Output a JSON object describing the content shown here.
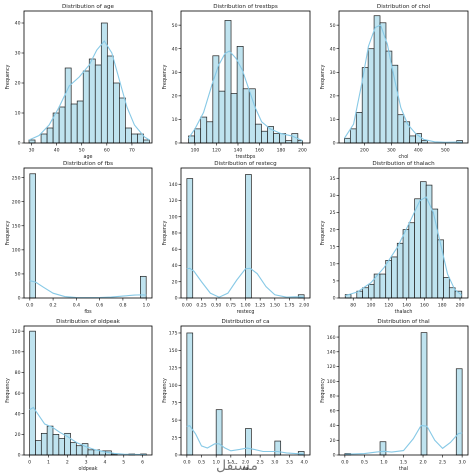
{
  "chart_data": [
    {
      "type": "bar",
      "title": "Distribution of age",
      "xlabel": "age",
      "ylabel": "Frequency",
      "xlim": [
        27,
        78
      ],
      "ylim": [
        0,
        44
      ],
      "xticks": [
        30,
        40,
        50,
        60,
        70
      ],
      "yticks": [
        0,
        10,
        20,
        30,
        40
      ],
      "bins": [
        {
          "x0": 29.0,
          "x1": 31.4,
          "y": 1
        },
        {
          "x0": 31.4,
          "x1": 33.8,
          "y": 0
        },
        {
          "x0": 33.8,
          "x1": 36.2,
          "y": 3
        },
        {
          "x0": 36.2,
          "x1": 38.6,
          "y": 5
        },
        {
          "x0": 38.6,
          "x1": 41.0,
          "y": 10
        },
        {
          "x0": 41.0,
          "x1": 43.4,
          "y": 12
        },
        {
          "x0": 43.4,
          "x1": 45.8,
          "y": 25
        },
        {
          "x0": 45.8,
          "x1": 48.2,
          "y": 13
        },
        {
          "x0": 48.2,
          "x1": 50.6,
          "y": 14
        },
        {
          "x0": 50.6,
          "x1": 53.0,
          "y": 24
        },
        {
          "x0": 53.0,
          "x1": 55.4,
          "y": 28
        },
        {
          "x0": 55.4,
          "x1": 57.8,
          "y": 26
        },
        {
          "x0": 57.8,
          "x1": 60.2,
          "y": 40
        },
        {
          "x0": 60.2,
          "x1": 62.6,
          "y": 29
        },
        {
          "x0": 62.6,
          "x1": 65.0,
          "y": 20
        },
        {
          "x0": 65.0,
          "x1": 67.4,
          "y": 15
        },
        {
          "x0": 67.4,
          "x1": 69.8,
          "y": 5
        },
        {
          "x0": 69.8,
          "x1": 72.2,
          "y": 3
        },
        {
          "x0": 72.2,
          "x1": 74.6,
          "y": 3
        },
        {
          "x0": 74.6,
          "x1": 77.0,
          "y": 1
        }
      ],
      "kde": [
        [
          29,
          1
        ],
        [
          33,
          2.5
        ],
        [
          37,
          6
        ],
        [
          41,
          12
        ],
        [
          45,
          19
        ],
        [
          49,
          22
        ],
        [
          53,
          26
        ],
        [
          56,
          31
        ],
        [
          59,
          34
        ],
        [
          62,
          30
        ],
        [
          65,
          21
        ],
        [
          68,
          12
        ],
        [
          71,
          6
        ],
        [
          75,
          2
        ],
        [
          77,
          1
        ]
      ]
    },
    {
      "type": "bar",
      "title": "Distribution of trestbps",
      "xlabel": "trestbps",
      "ylabel": "Frequency",
      "xlim": [
        87,
        207
      ],
      "ylim": [
        0,
        56
      ],
      "xticks": [
        100,
        120,
        140,
        160,
        180,
        200
      ],
      "yticks": [
        0,
        10,
        20,
        30,
        40,
        50
      ],
      "bins": [
        {
          "x0": 94,
          "x1": 99.65,
          "y": 3
        },
        {
          "x0": 99.65,
          "x1": 105.3,
          "y": 6
        },
        {
          "x0": 105.3,
          "x1": 110.95,
          "y": 11
        },
        {
          "x0": 110.95,
          "x1": 116.6,
          "y": 9
        },
        {
          "x0": 116.6,
          "x1": 122.25,
          "y": 37
        },
        {
          "x0": 122.25,
          "x1": 127.9,
          "y": 22
        },
        {
          "x0": 127.9,
          "x1": 133.55,
          "y": 52
        },
        {
          "x0": 133.55,
          "x1": 139.2,
          "y": 21
        },
        {
          "x0": 139.2,
          "x1": 144.85,
          "y": 41
        },
        {
          "x0": 144.85,
          "x1": 150.5,
          "y": 23
        },
        {
          "x0": 150.5,
          "x1": 156.15,
          "y": 23
        },
        {
          "x0": 156.15,
          "x1": 161.8,
          "y": 8
        },
        {
          "x0": 161.8,
          "x1": 167.45,
          "y": 5
        },
        {
          "x0": 167.45,
          "x1": 173.1,
          "y": 7
        },
        {
          "x0": 173.1,
          "x1": 178.75,
          "y": 4
        },
        {
          "x0": 178.75,
          "x1": 184.4,
          "y": 4
        },
        {
          "x0": 184.4,
          "x1": 190.05,
          "y": 1
        },
        {
          "x0": 190.05,
          "x1": 195.7,
          "y": 4
        },
        {
          "x0": 195.7,
          "x1": 200,
          "y": 1
        }
      ],
      "kde": [
        [
          94,
          2
        ],
        [
          100,
          6
        ],
        [
          108,
          13
        ],
        [
          116,
          25
        ],
        [
          122,
          33
        ],
        [
          128,
          38
        ],
        [
          132,
          39
        ],
        [
          138,
          36
        ],
        [
          144,
          31
        ],
        [
          150,
          23
        ],
        [
          156,
          15
        ],
        [
          162,
          9
        ],
        [
          170,
          6
        ],
        [
          180,
          4
        ],
        [
          190,
          3
        ],
        [
          200,
          1
        ]
      ]
    },
    {
      "type": "bar",
      "title": "Distribution of chol",
      "xlabel": "chol",
      "ylabel": "Frequency",
      "xlim": [
        106,
        584
      ],
      "ylim": [
        0,
        56
      ],
      "xticks": [
        200,
        300,
        400,
        500
      ],
      "yticks": [
        0,
        10,
        20,
        30,
        40,
        50
      ],
      "bins": [
        {
          "x0": 126,
          "x1": 148,
          "y": 2
        },
        {
          "x0": 148,
          "x1": 170,
          "y": 6
        },
        {
          "x0": 170,
          "x1": 192,
          "y": 13
        },
        {
          "x0": 192,
          "x1": 214,
          "y": 32
        },
        {
          "x0": 214,
          "x1": 236,
          "y": 40
        },
        {
          "x0": 236,
          "x1": 258,
          "y": 54
        },
        {
          "x0": 258,
          "x1": 280,
          "y": 51
        },
        {
          "x0": 280,
          "x1": 302,
          "y": 39
        },
        {
          "x0": 302,
          "x1": 324,
          "y": 33
        },
        {
          "x0": 324,
          "x1": 346,
          "y": 12
        },
        {
          "x0": 346,
          "x1": 368,
          "y": 9
        },
        {
          "x0": 368,
          "x1": 390,
          "y": 3
        },
        {
          "x0": 390,
          "x1": 412,
          "y": 4
        },
        {
          "x0": 412,
          "x1": 434,
          "y": 1
        },
        {
          "x0": 542,
          "x1": 564,
          "y": 1
        }
      ],
      "kde": [
        [
          126,
          2
        ],
        [
          160,
          8
        ],
        [
          190,
          25
        ],
        [
          215,
          41
        ],
        [
          240,
          49
        ],
        [
          260,
          50
        ],
        [
          285,
          42
        ],
        [
          310,
          28
        ],
        [
          335,
          15
        ],
        [
          360,
          8
        ],
        [
          390,
          4
        ],
        [
          420,
          1.5
        ],
        [
          460,
          0.5
        ],
        [
          500,
          0.3
        ],
        [
          540,
          0.4
        ],
        [
          564,
          0.2
        ]
      ]
    },
    {
      "type": "bar",
      "title": "Distribution of fbs",
      "xlabel": "fbs",
      "ylabel": "Frequency",
      "xlim": [
        -0.05,
        1.05
      ],
      "ylim": [
        0,
        270
      ],
      "xticks": [
        0.0,
        0.2,
        0.4,
        0.6,
        0.8,
        1.0
      ],
      "yticks": [
        0,
        50,
        100,
        150,
        200,
        250
      ],
      "bins": [
        {
          "x0": 0.0,
          "x1": 0.05,
          "y": 258
        },
        {
          "x0": 0.95,
          "x1": 1.0,
          "y": 45
        }
      ],
      "kde": [
        [
          0.0,
          36
        ],
        [
          0.05,
          33
        ],
        [
          0.12,
          22
        ],
        [
          0.2,
          10
        ],
        [
          0.3,
          3
        ],
        [
          0.4,
          1
        ],
        [
          0.5,
          0.6
        ],
        [
          0.6,
          1
        ],
        [
          0.7,
          2
        ],
        [
          0.8,
          4
        ],
        [
          0.9,
          6
        ],
        [
          0.95,
          6.5
        ],
        [
          1.0,
          6
        ]
      ]
    },
    {
      "type": "bar",
      "title": "Distribution of restecg",
      "xlabel": "restecg",
      "ylabel": "Frequency",
      "xlim": [
        -0.1,
        2.1
      ],
      "ylim": [
        0,
        160
      ],
      "xticks": [
        0.0,
        0.25,
        0.5,
        0.75,
        1.0,
        1.25,
        1.5,
        1.75,
        2.0
      ],
      "yticks": [
        0,
        20,
        40,
        60,
        80,
        100,
        120,
        140
      ],
      "bins": [
        {
          "x0": 0.0,
          "x1": 0.1,
          "y": 147
        },
        {
          "x0": 1.0,
          "x1": 1.1,
          "y": 152
        },
        {
          "x0": 1.9,
          "x1": 2.0,
          "y": 4
        }
      ],
      "kde": [
        [
          0.0,
          36
        ],
        [
          0.05,
          36.5
        ],
        [
          0.12,
          33
        ],
        [
          0.25,
          20
        ],
        [
          0.4,
          6
        ],
        [
          0.55,
          1
        ],
        [
          0.7,
          6
        ],
        [
          0.85,
          22
        ],
        [
          1.0,
          36
        ],
        [
          1.08,
          36.5
        ],
        [
          1.2,
          30
        ],
        [
          1.35,
          14
        ],
        [
          1.5,
          4
        ],
        [
          1.7,
          1
        ],
        [
          1.85,
          1.5
        ],
        [
          2.0,
          1
        ]
      ]
    },
    {
      "type": "bar",
      "title": "Distribution of thalach",
      "xlabel": "thalach",
      "ylabel": "Frequency",
      "xlim": [
        64,
        209
      ],
      "ylim": [
        0,
        38
      ],
      "xticks": [
        80,
        100,
        120,
        140,
        160,
        180,
        200
      ],
      "yticks": [
        0,
        5,
        10,
        15,
        20,
        25,
        30,
        35
      ],
      "bins": [
        {
          "x0": 71,
          "x1": 77.5,
          "y": 1
        },
        {
          "x0": 77.5,
          "x1": 84,
          "y": 0
        },
        {
          "x0": 84,
          "x1": 90.5,
          "y": 2
        },
        {
          "x0": 90.5,
          "x1": 97,
          "y": 3
        },
        {
          "x0": 97,
          "x1": 103.5,
          "y": 4
        },
        {
          "x0": 103.5,
          "x1": 110,
          "y": 7
        },
        {
          "x0": 110,
          "x1": 116.5,
          "y": 7
        },
        {
          "x0": 116.5,
          "x1": 123,
          "y": 11
        },
        {
          "x0": 123,
          "x1": 129.5,
          "y": 12
        },
        {
          "x0": 129.5,
          "x1": 136,
          "y": 16
        },
        {
          "x0": 136,
          "x1": 142.5,
          "y": 20
        },
        {
          "x0": 142.5,
          "x1": 149,
          "y": 22
        },
        {
          "x0": 149,
          "x1": 155.5,
          "y": 29
        },
        {
          "x0": 155.5,
          "x1": 162,
          "y": 34
        },
        {
          "x0": 162,
          "x1": 168.5,
          "y": 33
        },
        {
          "x0": 168.5,
          "x1": 175,
          "y": 26
        },
        {
          "x0": 175,
          "x1": 181.5,
          "y": 17
        },
        {
          "x0": 181.5,
          "x1": 188,
          "y": 6
        },
        {
          "x0": 188,
          "x1": 194.5,
          "y": 3
        },
        {
          "x0": 194.5,
          "x1": 202,
          "y": 2
        }
      ],
      "kde": [
        [
          71,
          0.7
        ],
        [
          85,
          1.8
        ],
        [
          100,
          4.5
        ],
        [
          115,
          9
        ],
        [
          130,
          15
        ],
        [
          145,
          23
        ],
        [
          155,
          28.5
        ],
        [
          162,
          29.5
        ],
        [
          170,
          25
        ],
        [
          178,
          16
        ],
        [
          186,
          7
        ],
        [
          194,
          2.5
        ],
        [
          202,
          0.8
        ]
      ]
    },
    {
      "type": "bar",
      "title": "Distribution of oldpeak",
      "xlabel": "oldpeak",
      "ylabel": "Frequency",
      "xlim": [
        -0.3,
        6.5
      ],
      "ylim": [
        0,
        125
      ],
      "xticks": [
        0,
        1,
        2,
        3,
        4,
        5,
        6
      ],
      "yticks": [
        0,
        20,
        40,
        60,
        80,
        100,
        120
      ],
      "bins": [
        {
          "x0": 0.0,
          "x1": 0.31,
          "y": 120
        },
        {
          "x0": 0.31,
          "x1": 0.62,
          "y": 14
        },
        {
          "x0": 0.62,
          "x1": 0.93,
          "y": 21
        },
        {
          "x0": 0.93,
          "x1": 1.24,
          "y": 28
        },
        {
          "x0": 1.24,
          "x1": 1.55,
          "y": 20
        },
        {
          "x0": 1.55,
          "x1": 1.86,
          "y": 16
        },
        {
          "x0": 1.86,
          "x1": 2.17,
          "y": 21
        },
        {
          "x0": 2.17,
          "x1": 2.48,
          "y": 12
        },
        {
          "x0": 2.48,
          "x1": 2.79,
          "y": 9
        },
        {
          "x0": 2.79,
          "x1": 3.1,
          "y": 11
        },
        {
          "x0": 3.1,
          "x1": 3.41,
          "y": 5
        },
        {
          "x0": 3.41,
          "x1": 3.72,
          "y": 5
        },
        {
          "x0": 3.72,
          "x1": 4.03,
          "y": 4
        },
        {
          "x0": 4.03,
          "x1": 4.34,
          "y": 4
        },
        {
          "x0": 4.34,
          "x1": 4.65,
          "y": 1
        },
        {
          "x0": 5.27,
          "x1": 5.58,
          "y": 1
        },
        {
          "x0": 5.89,
          "x1": 6.2,
          "y": 1
        }
      ],
      "kde": [
        [
          0.0,
          44
        ],
        [
          0.2,
          46
        ],
        [
          0.5,
          38
        ],
        [
          0.8,
          30
        ],
        [
          1.2,
          27
        ],
        [
          1.6,
          22
        ],
        [
          2.0,
          18
        ],
        [
          2.5,
          12
        ],
        [
          3.0,
          8
        ],
        [
          3.5,
          5
        ],
        [
          4.0,
          3
        ],
        [
          4.5,
          1.5
        ],
        [
          5.0,
          0.8
        ],
        [
          5.5,
          0.6
        ],
        [
          6.2,
          0.4
        ]
      ]
    },
    {
      "type": "bar",
      "title": "Distribution of ca",
      "xlabel": "ca",
      "ylabel": "Frequency",
      "xlim": [
        -0.2,
        4.2
      ],
      "ylim": [
        0,
        185
      ],
      "xticks": [
        0.0,
        0.5,
        1.0,
        1.5,
        2.0,
        2.5,
        3.0,
        3.5,
        4.0
      ],
      "yticks": [
        0,
        25,
        50,
        75,
        100,
        125,
        150,
        175
      ],
      "bins": [
        {
          "x0": 0.0,
          "x1": 0.2,
          "y": 175
        },
        {
          "x0": 1.0,
          "x1": 1.2,
          "y": 65
        },
        {
          "x0": 2.0,
          "x1": 2.2,
          "y": 38
        },
        {
          "x0": 3.0,
          "x1": 3.2,
          "y": 20
        },
        {
          "x0": 3.8,
          "x1": 4.0,
          "y": 5
        }
      ],
      "kde": [
        [
          0.0,
          41
        ],
        [
          0.1,
          42
        ],
        [
          0.3,
          30
        ],
        [
          0.5,
          13
        ],
        [
          0.7,
          10
        ],
        [
          0.95,
          16
        ],
        [
          1.1,
          16
        ],
        [
          1.3,
          10
        ],
        [
          1.5,
          6
        ],
        [
          1.8,
          8
        ],
        [
          2.05,
          10
        ],
        [
          2.3,
          8
        ],
        [
          2.6,
          5
        ],
        [
          2.9,
          5
        ],
        [
          3.1,
          5
        ],
        [
          3.4,
          3
        ],
        [
          3.7,
          2
        ],
        [
          4.0,
          1.2
        ]
      ]
    },
    {
      "type": "bar",
      "title": "Distribution of thal",
      "xlabel": "thal",
      "ylabel": "Frequency",
      "xlim": [
        -0.15,
        3.15
      ],
      "ylim": [
        0,
        175
      ],
      "xticks": [
        0.0,
        0.5,
        1.0,
        1.5,
        2.0,
        2.5,
        3.0
      ],
      "yticks": [
        0,
        20,
        40,
        60,
        80,
        100,
        120,
        140,
        160
      ],
      "bins": [
        {
          "x0": 0.0,
          "x1": 0.15,
          "y": 2
        },
        {
          "x0": 0.9,
          "x1": 1.05,
          "y": 18
        },
        {
          "x0": 1.95,
          "x1": 2.1,
          "y": 166
        },
        {
          "x0": 2.85,
          "x1": 3.0,
          "y": 117
        }
      ],
      "kde": [
        [
          0.0,
          1
        ],
        [
          0.5,
          2
        ],
        [
          0.8,
          4
        ],
        [
          1.0,
          5
        ],
        [
          1.2,
          4
        ],
        [
          1.5,
          6
        ],
        [
          1.75,
          22
        ],
        [
          1.95,
          40
        ],
        [
          2.1,
          39
        ],
        [
          2.3,
          20
        ],
        [
          2.5,
          9
        ],
        [
          2.7,
          17
        ],
        [
          2.9,
          29
        ],
        [
          3.0,
          30
        ]
      ]
    }
  ],
  "watermark": "مستقل"
}
